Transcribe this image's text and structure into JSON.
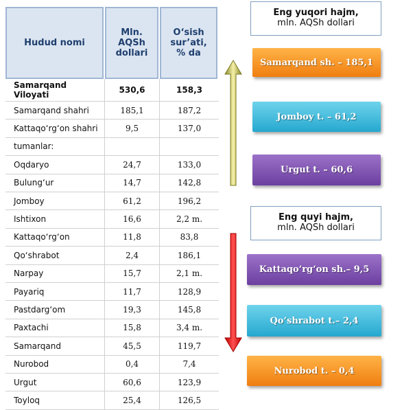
{
  "table": {
    "header": [
      "Hudud nomi",
      "Mln. AQSh dollari",
      "O‘sish sur’ati, % da"
    ],
    "rows": [
      [
        "Samarqand Viloyati",
        "530,6",
        "158,3"
      ],
      [
        "Samarqand  shahri",
        "185,1",
        "187,2"
      ],
      [
        "Kattaqo‘rg‘on  shahri",
        "9,5",
        "137,0"
      ],
      [
        "tumanlar:"
      ],
      [
        "Oqdaryo",
        "24,7",
        "133,0"
      ],
      [
        "Bulung‘ur",
        "14,7",
        "142,8"
      ],
      [
        "Jomboy",
        "61,2",
        "196,2"
      ],
      [
        "Ishtixon",
        "16,6",
        "2,2 m."
      ],
      [
        "Kattaqo‘rg‘on",
        "11,8",
        "83,8"
      ],
      [
        "Qo‘shrabot",
        "2,4",
        "186,1"
      ],
      [
        "Narpay",
        "15,7",
        "2,1 m."
      ],
      [
        "Payariq",
        "11,7",
        "128,9"
      ],
      [
        "Pastdarg‘om",
        "19,3",
        "145,8"
      ],
      [
        "Paxtachi",
        "15,8",
        "3,4 m."
      ],
      [
        "Samarqand",
        "45,5",
        "119,7"
      ],
      [
        "Nurobod",
        "0,4",
        "7,4"
      ],
      [
        "Urgut",
        "60,6",
        "123,9"
      ],
      [
        "Toyloq",
        "25,4",
        "126,5"
      ]
    ]
  },
  "top": {
    "title": "Eng yuqori hajm,",
    "subtitle": "mln. AQSh dollari",
    "items": [
      "Samarqand sh. – 185,1",
      "Jomboy t. –  61,2",
      "Urgut t. –  60,6"
    ]
  },
  "bottom": {
    "title": "Eng quyi hajm,",
    "subtitle": "mln. AQSh dollari",
    "items": [
      "Kattaqo‘rg‘on sh.– 9,5",
      "Qo‘shrabot t.– 2,4",
      "Nurobod t. – 0,4"
    ]
  }
}
